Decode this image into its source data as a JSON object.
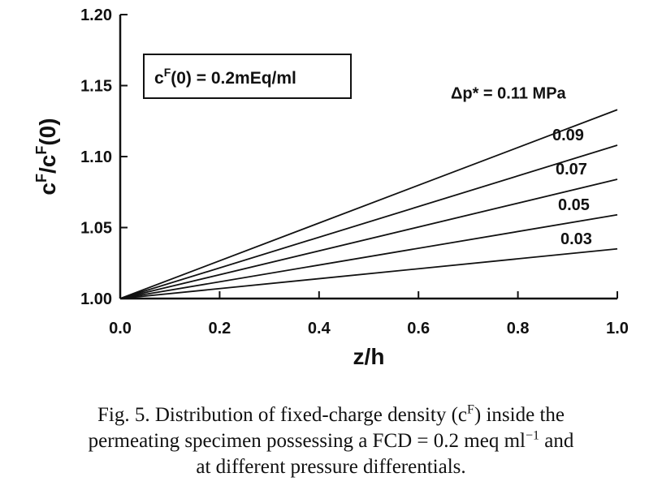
{
  "chart_data": {
    "type": "line",
    "xlabel": "z/h",
    "ylabel": "c^F/c^F(0)",
    "xlim": [
      0.0,
      1.0
    ],
    "ylim": [
      1.0,
      1.2
    ],
    "x_ticks": [
      "0.0",
      "0.2",
      "0.4",
      "0.6",
      "0.8",
      "1.0"
    ],
    "y_ticks": [
      "1.00",
      "1.05",
      "1.10",
      "1.15",
      "1.20"
    ],
    "legend_box": "c^F(0) = 0.2mEq/ml",
    "series": [
      {
        "name": "Δp* = 0.11 MPa",
        "x": [
          0.0,
          1.0
        ],
        "y": [
          1.0,
          1.133
        ]
      },
      {
        "name": "0.09",
        "x": [
          0.0,
          1.0
        ],
        "y": [
          1.0,
          1.108
        ]
      },
      {
        "name": "0.07",
        "x": [
          0.0,
          1.0
        ],
        "y": [
          1.0,
          1.084
        ]
      },
      {
        "name": "0.05",
        "x": [
          0.0,
          1.0
        ],
        "y": [
          1.0,
          1.059
        ]
      },
      {
        "name": "0.03",
        "x": [
          0.0,
          1.0
        ],
        "y": [
          1.0,
          1.035
        ]
      }
    ]
  },
  "caption": {
    "line1_a": "Fig. 5. Distribution of fixed-charge density (c",
    "line1_sup": "F",
    "line1_b": ") inside the",
    "line2_a": "permeating specimen possessing a FCD = 0.2 meq ml",
    "line2_sup": "−1",
    "line2_b": " and",
    "line3": "at different pressure differentials."
  }
}
